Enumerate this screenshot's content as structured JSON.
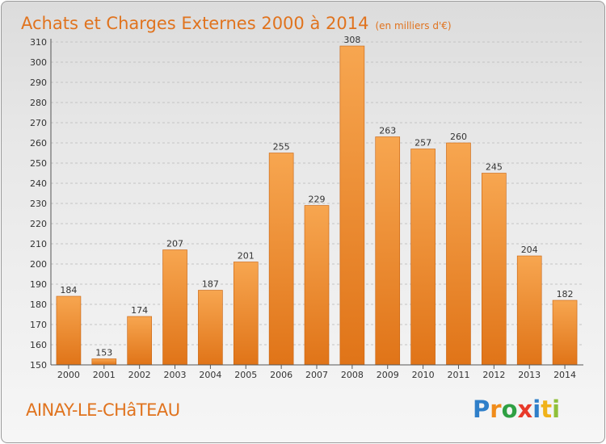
{
  "header": {
    "title": "Achats et Charges Externes 2000 à 2014",
    "unit": "(en milliers d'€)"
  },
  "footer": {
    "commune": "AINAY-LE-CHâTEAU",
    "logo_letters": [
      {
        "ch": "P",
        "color": "#2f7fc9"
      },
      {
        "ch": "r",
        "color": "#f08c1a"
      },
      {
        "ch": "o",
        "color": "#2fa043"
      },
      {
        "ch": "x",
        "color": "#e83a2a"
      },
      {
        "ch": "i",
        "color": "#2f7fc9"
      },
      {
        "ch": "t",
        "color": "#f0b21a"
      },
      {
        "ch": "i",
        "color": "#8fc03a"
      }
    ]
  },
  "colors": {
    "bar_top": "#f7a650",
    "bar_bottom": "#e07418",
    "bar_edge": "#c8620e",
    "title": "#e0731e"
  },
  "chart_data": {
    "type": "bar",
    "title": "Achats et Charges Externes 2000 à 2014",
    "subtitle": "(en milliers d'€)",
    "categories": [
      "2000",
      "2001",
      "2002",
      "2003",
      "2004",
      "2005",
      "2006",
      "2007",
      "2008",
      "2009",
      "2010",
      "2011",
      "2012",
      "2013",
      "2014"
    ],
    "values": [
      184,
      153,
      174,
      207,
      187,
      201,
      255,
      229,
      308,
      263,
      257,
      260,
      245,
      204,
      182
    ],
    "ylim": [
      150,
      310
    ],
    "yticks": [
      150,
      160,
      170,
      180,
      190,
      200,
      210,
      220,
      230,
      240,
      250,
      260,
      270,
      280,
      290,
      300,
      310
    ],
    "grid": true,
    "data_labels": true
  }
}
